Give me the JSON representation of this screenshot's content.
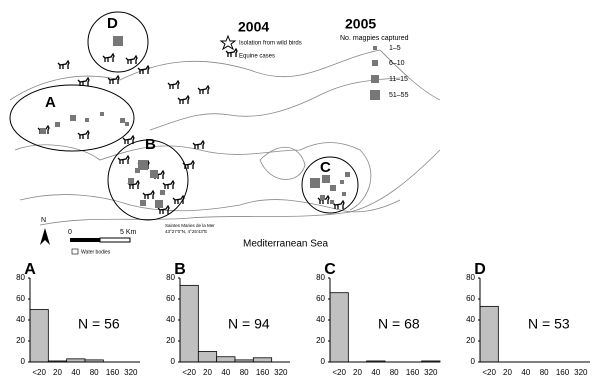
{
  "map": {
    "year_2004": "2004",
    "isolation": "Isolation from wild birds",
    "equine": "Equine cases",
    "year_2005": "2005",
    "magpies_title": "No. magpies captured",
    "magpie_classes": [
      "1–5",
      "6–10",
      "11–15",
      "51–55"
    ],
    "regions": [
      "A",
      "B",
      "C",
      "D"
    ],
    "north": "N",
    "scale_start": "0",
    "scale_end": "5 Km",
    "town": "Saintes Maries de la Mer",
    "coords": "43°27'0\"N, 4°25'43\"E",
    "sea": "Mediterranean Sea",
    "water": "Water bodies"
  },
  "chart_data": [
    {
      "type": "bar",
      "title": "A",
      "annotation": "N = 56",
      "categories": [
        "<20",
        "20",
        "40",
        "80",
        "160",
        "320"
      ],
      "values": [
        50,
        1,
        3,
        2,
        0,
        0
      ],
      "color": "#c0c0c0",
      "ylim": [
        0,
        80
      ],
      "yticks": [
        0,
        20,
        40,
        60,
        80
      ]
    },
    {
      "type": "bar",
      "title": "B",
      "annotation": "N = 94",
      "categories": [
        "<20",
        "20",
        "40",
        "80",
        "160",
        "320"
      ],
      "values": [
        73,
        10,
        5,
        2,
        4,
        0
      ],
      "color": "#c0c0c0",
      "ylim": [
        0,
        80
      ],
      "yticks": [
        0,
        20,
        40,
        60,
        80
      ]
    },
    {
      "type": "bar",
      "title": "C",
      "annotation": "N = 68",
      "categories": [
        "<20",
        "20",
        "40",
        "80",
        "160",
        "320"
      ],
      "values": [
        66,
        0,
        1,
        0,
        0,
        1
      ],
      "color": "#c0c0c0",
      "ylim": [
        0,
        80
      ],
      "yticks": [
        0,
        20,
        40,
        60,
        80
      ]
    },
    {
      "type": "bar",
      "title": "D",
      "annotation": "N = 53",
      "categories": [
        "<20",
        "20",
        "40",
        "80",
        "160",
        "320"
      ],
      "values": [
        53,
        0,
        0,
        0,
        0,
        0
      ],
      "color": "#c0c0c0",
      "ylim": [
        0,
        80
      ],
      "yticks": [
        0,
        20,
        40,
        60,
        80
      ]
    }
  ]
}
